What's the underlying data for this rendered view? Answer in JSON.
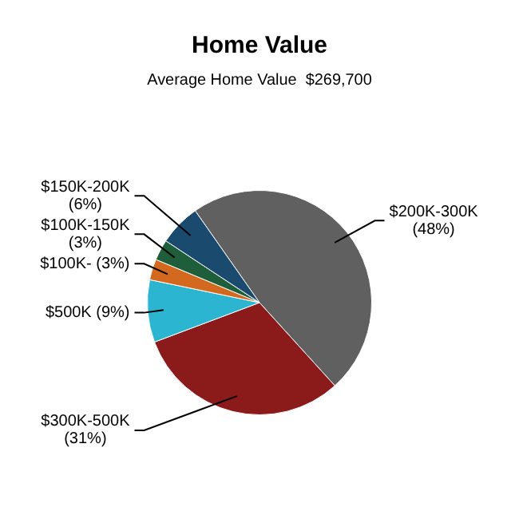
{
  "chart_data": {
    "type": "pie",
    "title": "Home Value",
    "subtitle": "Average Home Value  $269,700",
    "categories": [
      "$200K-300K",
      "$300K-500K",
      "$500K",
      "$100K-",
      "$100K-150K",
      "$150K-200K"
    ],
    "values": [
      48,
      31,
      9,
      3,
      3,
      6
    ],
    "value_labels": [
      "(48%)",
      "(31%)",
      "(9%)",
      "(3%)",
      "(3%)",
      "(6%)"
    ],
    "colors": [
      "#606060",
      "#8b1a1a",
      "#2bb5d0",
      "#d2691e",
      "#1e5e3a",
      "#1a4a6e"
    ],
    "legend": false
  }
}
